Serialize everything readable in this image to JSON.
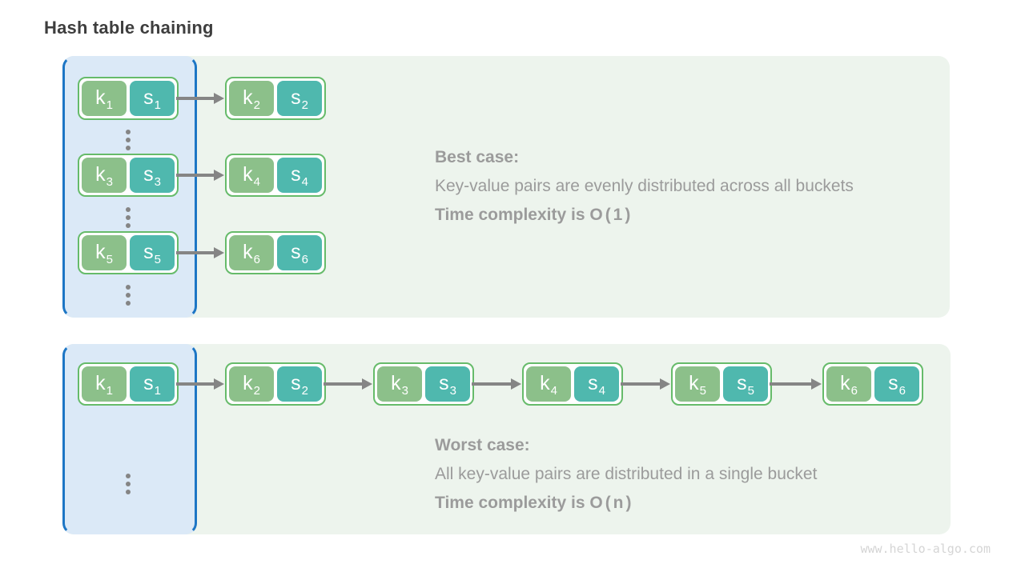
{
  "title": "Hash table chaining",
  "watermark": "www.hello-algo.com",
  "colors": {
    "title": "#3e3e3e",
    "text": "#9b9b9b",
    "watermark": "#d5d5d5",
    "panel_bg": "#edf4ed",
    "bucket_bg": "#dbe9f7",
    "bucket_border": "#1d76c5",
    "pair_border": "#66bb6a",
    "key_cell": "#8cc08a",
    "value_cell": "#4fb8ae",
    "arrow": "#858585"
  },
  "panel1": {
    "caption": {
      "case_label": "Best case:",
      "description": "Key-value pairs are evenly distributed across all buckets",
      "complexity_prefix": "Time complexity is ",
      "complexity_value": "O(1)"
    },
    "chains": [
      [
        {
          "key_label": "k",
          "key_sub": "1",
          "value_label": "s",
          "value_sub": "1"
        },
        {
          "key_label": "k",
          "key_sub": "2",
          "value_label": "s",
          "value_sub": "2"
        }
      ],
      [
        {
          "key_label": "k",
          "key_sub": "3",
          "value_label": "s",
          "value_sub": "3"
        },
        {
          "key_label": "k",
          "key_sub": "4",
          "value_label": "s",
          "value_sub": "4"
        }
      ],
      [
        {
          "key_label": "k",
          "key_sub": "5",
          "value_label": "s",
          "value_sub": "5"
        },
        {
          "key_label": "k",
          "key_sub": "6",
          "value_label": "s",
          "value_sub": "6"
        }
      ]
    ]
  },
  "panel2": {
    "caption": {
      "case_label": "Worst case:",
      "description": "All key-value pairs are distributed in a single bucket",
      "complexity_prefix": "Time complexity is ",
      "complexity_value": "O(n)"
    },
    "chain": [
      {
        "key_label": "k",
        "key_sub": "1",
        "value_label": "s",
        "value_sub": "1"
      },
      {
        "key_label": "k",
        "key_sub": "2",
        "value_label": "s",
        "value_sub": "2"
      },
      {
        "key_label": "k",
        "key_sub": "3",
        "value_label": "s",
        "value_sub": "3"
      },
      {
        "key_label": "k",
        "key_sub": "4",
        "value_label": "s",
        "value_sub": "4"
      },
      {
        "key_label": "k",
        "key_sub": "5",
        "value_label": "s",
        "value_sub": "5"
      },
      {
        "key_label": "k",
        "key_sub": "6",
        "value_label": "s",
        "value_sub": "6"
      }
    ]
  }
}
